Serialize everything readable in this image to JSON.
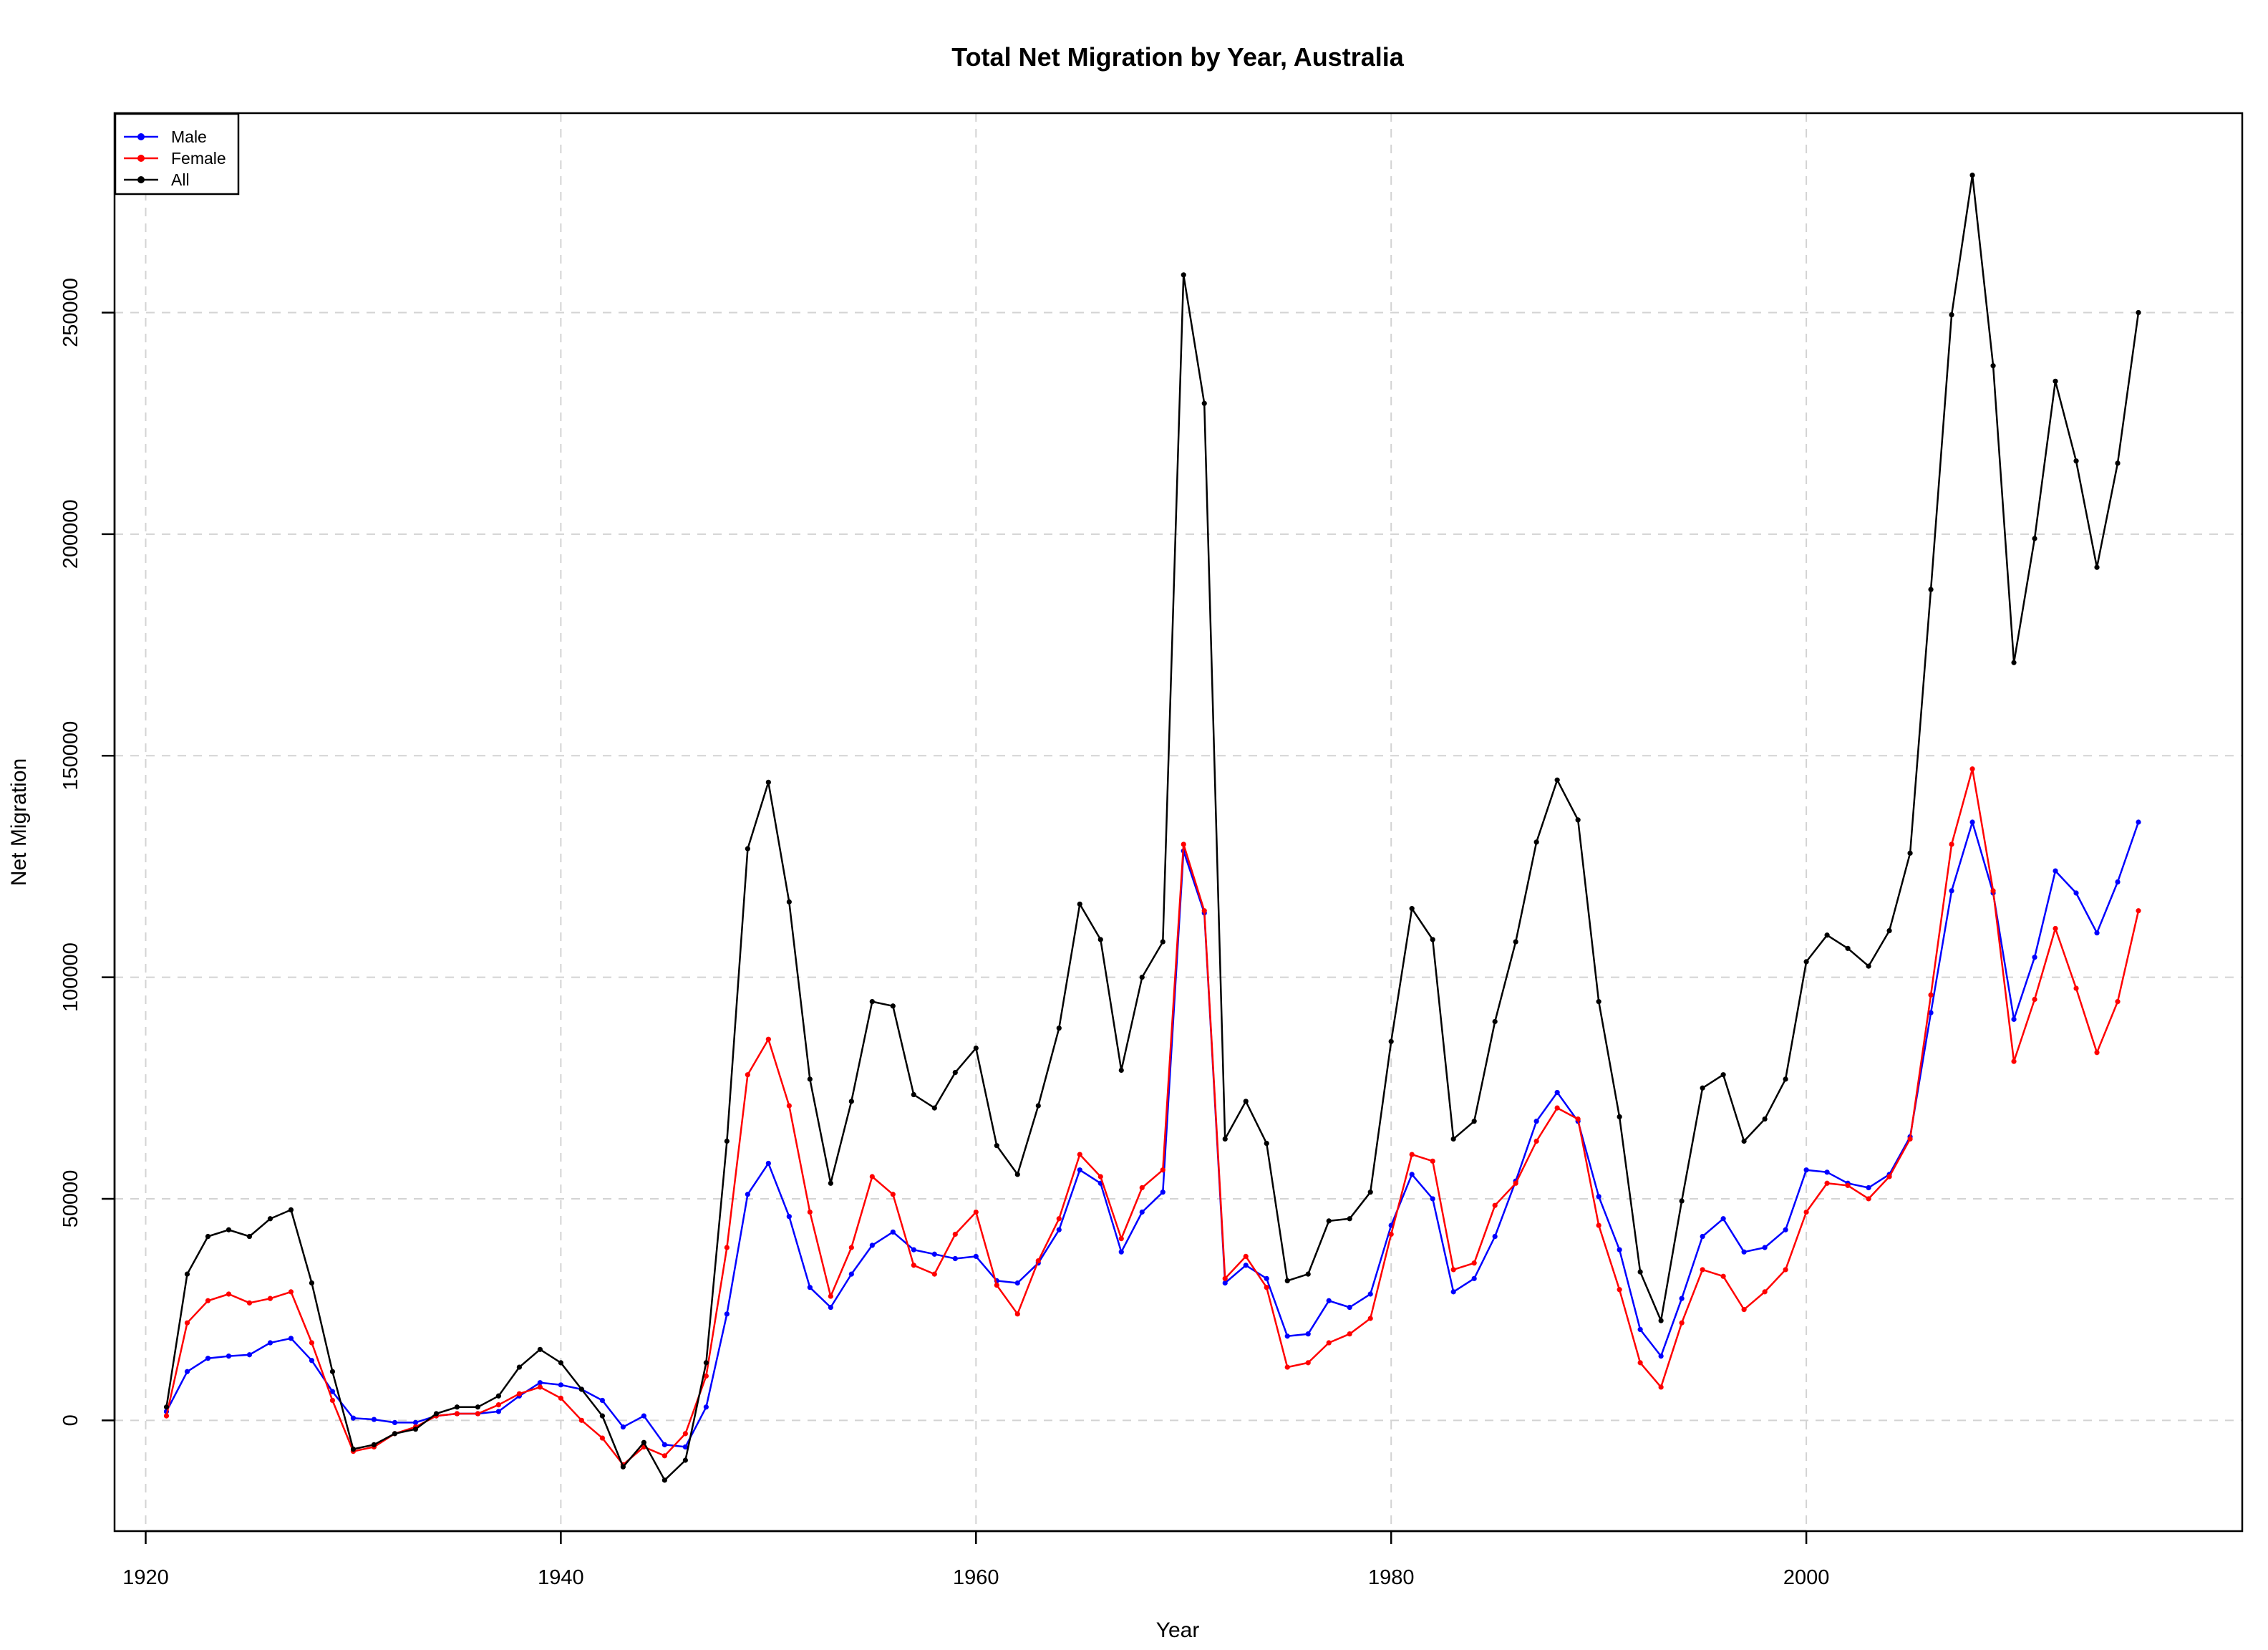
{
  "chart_data": {
    "type": "line",
    "title": "Total Net Migration by Year, Australia",
    "xlabel": "Year",
    "ylabel": "Net Migration",
    "xlim": [
      1918.5,
      2021
    ],
    "ylim": [
      -25000,
      295000
    ],
    "x_ticks": [
      1920,
      1940,
      1960,
      1980,
      2000
    ],
    "y_ticks": [
      0,
      50000,
      100000,
      150000,
      200000,
      250000
    ],
    "grid": true,
    "legend_position": "top-left",
    "x": [
      1921,
      1922,
      1923,
      1924,
      1925,
      1926,
      1927,
      1928,
      1929,
      1930,
      1931,
      1932,
      1933,
      1934,
      1935,
      1936,
      1937,
      1938,
      1939,
      1940,
      1941,
      1942,
      1943,
      1944,
      1945,
      1946,
      1947,
      1948,
      1949,
      1950,
      1951,
      1952,
      1953,
      1954,
      1955,
      1956,
      1957,
      1958,
      1959,
      1960,
      1961,
      1962,
      1963,
      1964,
      1965,
      1966,
      1967,
      1968,
      1969,
      1970,
      1971,
      1972,
      1973,
      1974,
      1975,
      1976,
      1977,
      1978,
      1979,
      1980,
      1981,
      1982,
      1983,
      1984,
      1985,
      1986,
      1987,
      1988,
      1989,
      1990,
      1991,
      1992,
      1993,
      1994,
      1995,
      1996,
      1997,
      1998,
      1999,
      2000,
      2001,
      2002,
      2003,
      2004,
      2005,
      2006,
      2007,
      2008,
      2009,
      2010,
      2011,
      2012,
      2013,
      2014,
      2015,
      2016
    ],
    "series": [
      {
        "name": "Male",
        "color": "#0000ff",
        "values": [
          2000,
          11000,
          14000,
          14500,
          14800,
          17500,
          18500,
          13500,
          6500,
          500,
          200,
          -500,
          -500,
          1000,
          1500,
          1500,
          2000,
          5500,
          8500,
          8000,
          7000,
          4500,
          -1500,
          1000,
          -5500,
          -6000,
          3000,
          24000,
          51000,
          58000,
          46000,
          30000,
          25500,
          33000,
          39500,
          42500,
          38500,
          37500,
          36500,
          37000,
          31500,
          31000,
          35500,
          43000,
          56500,
          53500,
          38000,
          47000,
          51500,
          128500,
          114500,
          31000,
          35000,
          32000,
          19000,
          19500,
          27000,
          25500,
          28500,
          44000,
          55500,
          50000,
          29000,
          32000,
          41500,
          54000,
          67500,
          74000,
          67500,
          50500,
          38500,
          20500,
          14500,
          27500,
          41500,
          45500,
          38000,
          39000,
          43000,
          56500,
          56000,
          53500,
          52500,
          55500,
          64000,
          92000,
          119500,
          135000,
          119000,
          90500,
          104500,
          124000,
          119000,
          110000,
          121500,
          135000
        ]
      },
      {
        "name": "Female",
        "color": "#ff0000",
        "values": [
          1000,
          22000,
          27000,
          28500,
          26500,
          27500,
          29000,
          17500,
          4500,
          -7000,
          -6000,
          -3000,
          -1500,
          1000,
          1500,
          1500,
          3500,
          6000,
          7500,
          5000,
          0,
          -4000,
          -10000,
          -6000,
          -8000,
          -3000,
          10000,
          39000,
          78000,
          86000,
          71000,
          47000,
          28000,
          39000,
          55000,
          51000,
          35000,
          33000,
          42000,
          47000,
          30500,
          24000,
          36000,
          45500,
          60000,
          55000,
          41000,
          52500,
          56500,
          130000,
          115000,
          32000,
          37000,
          30000,
          12000,
          13000,
          17500,
          19500,
          23000,
          42000,
          60000,
          58500,
          34000,
          35500,
          48500,
          53500,
          63000,
          70500,
          68000,
          44000,
          29500,
          13000,
          7500,
          22000,
          34000,
          32500,
          25000,
          29000,
          34000,
          47000,
          53500,
          53000,
          50000,
          55000,
          63500,
          96000,
          130000,
          147000,
          119500,
          81000,
          95000,
          111000,
          97500,
          83000,
          94500,
          115000
        ]
      },
      {
        "name": "All",
        "color": "#000000",
        "values": [
          3000,
          33000,
          41500,
          43000,
          41500,
          45500,
          47500,
          31000,
          11000,
          -6500,
          -5500,
          -3000,
          -2000,
          1500,
          3000,
          3000,
          5500,
          12000,
          16000,
          13000,
          7000,
          1000,
          -10500,
          -5000,
          -13500,
          -9000,
          13000,
          63000,
          129000,
          144000,
          117000,
          77000,
          53500,
          72000,
          94500,
          93500,
          73500,
          70500,
          78500,
          84000,
          62000,
          55500,
          71000,
          88500,
          116500,
          108500,
          79000,
          100000,
          108000,
          258500,
          229500,
          63500,
          72000,
          62500,
          31500,
          33000,
          45000,
          45500,
          51500,
          85500,
          115500,
          108500,
          63500,
          67500,
          90000,
          108000,
          130500,
          144500,
          135500,
          94500,
          68500,
          33500,
          22500,
          49500,
          75000,
          78000,
          63000,
          68000,
          77000,
          103500,
          109500,
          106500,
          102500,
          110500,
          128000,
          187500,
          249500,
          281000,
          238000,
          171000,
          199000,
          234500,
          216500,
          192500,
          216000,
          250000
        ]
      }
    ]
  }
}
